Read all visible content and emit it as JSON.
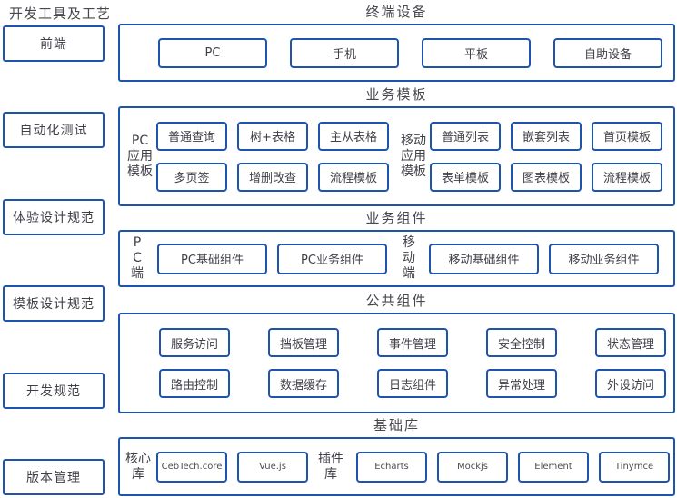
{
  "colors": {
    "border": "#1e53ae",
    "text": "#3f3f48",
    "heading": "#47474f",
    "background": "#ffffff"
  },
  "left_panel": {
    "title": "开发工具及工艺",
    "items": [
      "前端",
      "自动化测试",
      "体验设计规范",
      "模板设计规范",
      "开发规范",
      "版本管理"
    ]
  },
  "sections": [
    {
      "name": "terminal-devices",
      "title": "终端设备",
      "groups": [
        {
          "label": null,
          "rows": [
            [
              "PC",
              "手机",
              "平板",
              "自助设备"
            ]
          ]
        }
      ]
    },
    {
      "name": "business-templates",
      "title": "业务模板",
      "groups": [
        {
          "label": "PC\n应用\n模板",
          "rows": [
            [
              "普通查询",
              "树+表格",
              "主从表格"
            ],
            [
              "多页签",
              "增删改查",
              "流程模板"
            ]
          ]
        },
        {
          "label": "移动\n应用\n模板",
          "rows": [
            [
              "普通列表",
              "嵌套列表",
              "首页模板"
            ],
            [
              "表单模板",
              "图表模板",
              "流程模板"
            ]
          ]
        }
      ]
    },
    {
      "name": "business-components",
      "title": "业务组件",
      "groups": [
        {
          "label": "P\nC\n端",
          "rows": [
            [
              "PC基础组件",
              "PC业务组件"
            ]
          ]
        },
        {
          "label": "移\n动\n端",
          "rows": [
            [
              "移动基础组件",
              "移动业务组件"
            ]
          ]
        }
      ]
    },
    {
      "name": "common-components",
      "title": "公共组件",
      "groups": [
        {
          "label": null,
          "rows": [
            [
              "服务访问",
              "挡板管理",
              "事件管理",
              "安全控制",
              "状态管理"
            ],
            [
              "路由控制",
              "数据缓存",
              "日志组件",
              "异常处理",
              "外设访问"
            ]
          ]
        }
      ]
    },
    {
      "name": "base-libraries",
      "title": "基础库",
      "groups": [
        {
          "label": "核心\n库",
          "rows": [
            [
              "CebTech.core",
              "Vue.js"
            ]
          ]
        },
        {
          "label": "插件\n库",
          "rows": [
            [
              "Echarts",
              "Mockjs",
              "Element",
              "Tinymce"
            ]
          ]
        }
      ]
    }
  ]
}
